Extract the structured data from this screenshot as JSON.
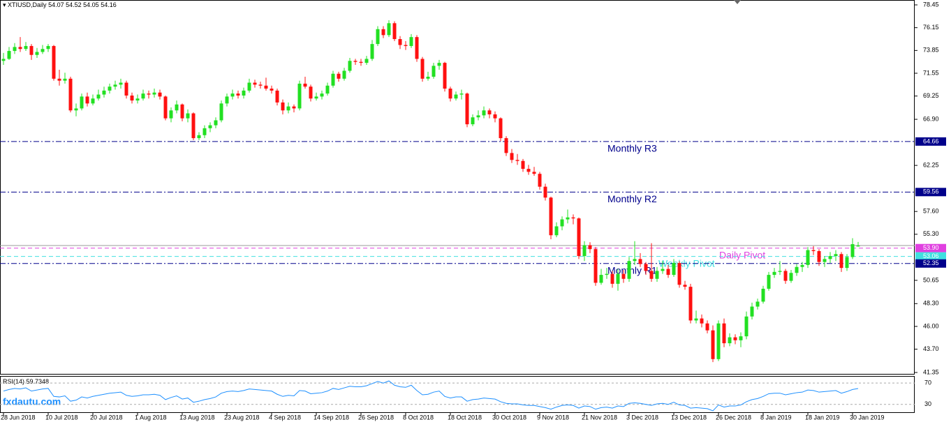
{
  "chart_data": {
    "type": "candlestick",
    "title": "XTIUSD,Daily",
    "up_color": "#22e022",
    "down_color": "#ff1010",
    "ylim": [
      41.35,
      78.45
    ],
    "yticks": [
      78.45,
      76.15,
      73.85,
      71.55,
      69.25,
      {
        "value": 66.9,
        "label": "66.90"
      },
      62.25,
      {
        "value": 57.6,
        "label": "57.60"
      },
      {
        "value": 55.3,
        "label": "55.30"
      },
      50.65,
      {
        "value": 48.3,
        "label": "48.30"
      },
      {
        "value": 46.0,
        "label": "46.00"
      },
      {
        "value": 43.7,
        "label": "43.70"
      },
      41.35
    ],
    "xticks": [
      {
        "value": 0,
        "label": "28 Jun 2018"
      },
      {
        "value": 8,
        "label": "10 Jul 2018"
      },
      {
        "value": 16,
        "label": "20 Jul 2018"
      },
      {
        "value": 24,
        "label": "1 Aug 2018"
      },
      {
        "value": 32,
        "label": "13 Aug 2018"
      },
      {
        "value": 40,
        "label": "23 Aug 2018"
      },
      {
        "value": 48,
        "label": "4 Sep 2018"
      },
      {
        "value": 56,
        "label": "14 Sep 2018"
      },
      {
        "value": 64,
        "label": "26 Sep 2018"
      },
      {
        "value": 72,
        "label": "8 Oct 2018"
      },
      {
        "value": 80,
        "label": "18 Oct 2018"
      },
      {
        "value": 88,
        "label": "30 Oct 2018"
      },
      {
        "value": 96,
        "label": "9 Nov 2018"
      },
      {
        "value": 104,
        "label": "21 Nov 2018"
      },
      {
        "value": 112,
        "label": "3 Dec 2018"
      },
      {
        "value": 120,
        "label": "13 Dec 2018"
      },
      {
        "value": 128,
        "label": "26 Dec 2018"
      },
      {
        "value": 136,
        "label": "8 Jan 2019"
      },
      {
        "value": 144,
        "label": "18 Jan 2019"
      },
      {
        "value": 152,
        "label": "30 Jan 2019"
      }
    ],
    "levels": [
      {
        "name": "Monthly R3",
        "value": 64.66,
        "color": "#00008b",
        "style": "dashdot"
      },
      {
        "name": "Monthly R2",
        "value": 59.56,
        "color": "#00008b",
        "style": "dashdot"
      },
      {
        "name": "Daily Pivot",
        "value": 53.9,
        "value_label": "53.90",
        "color": "#e040e0",
        "style": "dashed"
      },
      {
        "name": "Weekly Pivot",
        "value": 53.06,
        "color": "#40e0e0",
        "style": "dashed"
      },
      {
        "name": "Monthly R1",
        "value": 52.35,
        "color": "#00008b",
        "style": "dashdot"
      }
    ],
    "ohlc": [
      [
        72.8,
        73.6,
        72.4,
        73.0
      ],
      [
        73.0,
        74.2,
        72.9,
        73.8
      ],
      [
        73.8,
        74.6,
        73.5,
        74.2
      ],
      [
        74.2,
        75.2,
        73.7,
        74.0
      ],
      [
        74.0,
        74.7,
        73.8,
        74.3
      ],
      [
        74.3,
        74.5,
        72.9,
        73.4
      ],
      [
        73.4,
        74.1,
        73.1,
        73.7
      ],
      [
        73.7,
        74.4,
        73.5,
        74.0
      ],
      [
        74.0,
        74.5,
        73.7,
        74.3
      ],
      [
        74.3,
        74.4,
        70.8,
        71.0
      ],
      [
        71.0,
        71.9,
        70.3,
        70.8
      ],
      [
        70.8,
        71.6,
        70.5,
        71.0
      ],
      [
        71.0,
        71.2,
        67.6,
        67.8
      ],
      [
        67.8,
        68.5,
        67.2,
        68.0
      ],
      [
        68.0,
        69.5,
        67.8,
        69.2
      ],
      [
        69.2,
        69.6,
        68.2,
        68.5
      ],
      [
        68.5,
        69.4,
        68.3,
        69.0
      ],
      [
        69.0,
        69.9,
        68.8,
        69.4
      ],
      [
        69.4,
        70.2,
        69.1,
        69.8
      ],
      [
        69.8,
        70.5,
        69.5,
        70.2
      ],
      [
        70.2,
        70.8,
        69.9,
        70.4
      ],
      [
        70.4,
        71.0,
        70.0,
        70.6
      ],
      [
        70.6,
        70.8,
        69.0,
        69.3
      ],
      [
        69.3,
        69.6,
        68.5,
        68.8
      ],
      [
        68.8,
        69.4,
        68.5,
        69.0
      ],
      [
        69.0,
        69.9,
        68.8,
        69.5
      ],
      [
        69.5,
        69.8,
        69.0,
        69.4
      ],
      [
        69.4,
        70.0,
        69.1,
        69.6
      ],
      [
        69.6,
        69.9,
        68.9,
        69.2
      ],
      [
        69.2,
        69.3,
        66.8,
        67.0
      ],
      [
        67.0,
        68.1,
        66.6,
        67.8
      ],
      [
        67.8,
        68.8,
        67.5,
        68.4
      ],
      [
        68.4,
        68.5,
        66.7,
        67.0
      ],
      [
        67.0,
        67.9,
        66.6,
        67.5
      ],
      [
        67.5,
        67.6,
        64.8,
        65.0
      ],
      [
        65.0,
        65.6,
        64.8,
        65.3
      ],
      [
        65.3,
        66.3,
        65.0,
        66.0
      ],
      [
        66.0,
        66.6,
        65.6,
        66.3
      ],
      [
        66.3,
        67.1,
        66.0,
        66.8
      ],
      [
        66.8,
        68.8,
        66.6,
        68.5
      ],
      [
        68.5,
        69.5,
        68.2,
        69.2
      ],
      [
        69.2,
        69.9,
        68.9,
        69.5
      ],
      [
        69.5,
        69.8,
        69.0,
        69.3
      ],
      [
        69.3,
        70.1,
        69.0,
        69.8
      ],
      [
        69.8,
        71.0,
        69.6,
        70.6
      ],
      [
        70.6,
        70.9,
        70.1,
        70.4
      ],
      [
        70.4,
        70.7,
        70.0,
        70.3
      ],
      [
        70.3,
        71.1,
        69.8,
        70.0
      ],
      [
        70.0,
        70.3,
        69.5,
        69.8
      ],
      [
        69.8,
        70.0,
        68.3,
        68.6
      ],
      [
        68.6,
        68.9,
        67.4,
        67.8
      ],
      [
        67.8,
        68.6,
        67.5,
        68.2
      ],
      [
        68.2,
        68.4,
        67.6,
        68.0
      ],
      [
        68.0,
        70.8,
        67.8,
        70.5
      ],
      [
        70.5,
        71.2,
        70.0,
        70.2
      ],
      [
        70.2,
        70.4,
        68.7,
        69.0
      ],
      [
        69.0,
        69.6,
        68.8,
        69.2
      ],
      [
        69.2,
        69.8,
        68.9,
        69.5
      ],
      [
        69.5,
        70.6,
        69.3,
        70.3
      ],
      [
        70.3,
        71.8,
        70.1,
        71.5
      ],
      [
        71.5,
        71.7,
        70.7,
        71.0
      ],
      [
        71.0,
        72.1,
        70.8,
        71.8
      ],
      [
        71.8,
        73.1,
        71.6,
        72.8
      ],
      [
        72.8,
        73.0,
        72.4,
        72.7
      ],
      [
        72.7,
        73.0,
        72.3,
        72.6
      ],
      [
        72.6,
        73.3,
        72.4,
        73.0
      ],
      [
        73.0,
        74.9,
        72.8,
        74.5
      ],
      [
        74.5,
        76.3,
        74.3,
        76.0
      ],
      [
        76.0,
        76.3,
        75.1,
        75.4
      ],
      [
        75.4,
        76.9,
        75.2,
        76.6
      ],
      [
        76.6,
        76.8,
        74.8,
        75.0
      ],
      [
        75.0,
        75.3,
        74.0,
        74.4
      ],
      [
        74.4,
        74.8,
        73.9,
        74.3
      ],
      [
        74.3,
        75.5,
        74.1,
        75.2
      ],
      [
        75.2,
        75.4,
        72.7,
        73.0
      ],
      [
        73.0,
        73.2,
        70.7,
        71.0
      ],
      [
        71.0,
        71.7,
        70.8,
        71.2
      ],
      [
        71.2,
        72.6,
        71.0,
        72.3
      ],
      [
        72.3,
        72.9,
        71.9,
        72.6
      ],
      [
        72.6,
        72.7,
        69.7,
        70.0
      ],
      [
        70.0,
        70.2,
        68.7,
        69.0
      ],
      [
        69.0,
        69.7,
        68.8,
        69.4
      ],
      [
        69.4,
        69.9,
        68.9,
        69.5
      ],
      [
        69.5,
        69.6,
        66.1,
        66.4
      ],
      [
        66.4,
        67.4,
        66.2,
        67.1
      ],
      [
        67.1,
        67.8,
        66.8,
        67.3
      ],
      [
        67.3,
        68.2,
        67.0,
        67.8
      ],
      [
        67.8,
        68.0,
        67.0,
        67.4
      ],
      [
        67.4,
        67.7,
        66.6,
        67.0
      ],
      [
        67.0,
        67.1,
        64.7,
        65.0
      ],
      [
        65.0,
        65.2,
        63.2,
        63.5
      ],
      [
        63.5,
        63.9,
        62.5,
        62.8
      ],
      [
        62.8,
        63.4,
        62.3,
        62.7
      ],
      [
        62.7,
        62.9,
        61.6,
        61.9
      ],
      [
        61.9,
        62.3,
        61.3,
        61.6
      ],
      [
        61.6,
        62.1,
        61.2,
        61.4
      ],
      [
        61.4,
        61.6,
        59.8,
        60.1
      ],
      [
        60.1,
        60.4,
        58.7,
        59.0
      ],
      [
        59.0,
        59.1,
        54.8,
        55.2
      ],
      [
        55.2,
        56.5,
        55.0,
        56.1
      ],
      [
        56.1,
        57.1,
        55.7,
        56.8
      ],
      [
        56.8,
        57.8,
        56.4,
        57.0
      ],
      [
        57.0,
        57.3,
        56.3,
        56.9
      ],
      [
        56.9,
        57.0,
        52.8,
        53.1
      ],
      [
        53.1,
        54.6,
        52.6,
        54.2
      ],
      [
        54.2,
        54.5,
        53.4,
        53.8
      ],
      [
        53.8,
        54.0,
        50.1,
        50.4
      ],
      [
        50.4,
        51.8,
        50.2,
        51.2
      ],
      [
        51.2,
        51.9,
        50.8,
        51.3
      ],
      [
        51.3,
        51.6,
        49.9,
        50.3
      ],
      [
        50.3,
        51.8,
        49.6,
        51.3
      ],
      [
        51.3,
        51.7,
        50.4,
        50.8
      ],
      [
        50.8,
        53.0,
        50.5,
        52.6
      ],
      [
        52.6,
        54.6,
        52.2,
        52.8
      ],
      [
        52.8,
        53.4,
        52.0,
        52.3
      ],
      [
        52.3,
        52.5,
        51.2,
        51.6
      ],
      [
        51.6,
        54.4,
        50.5,
        50.8
      ],
      [
        50.8,
        52.0,
        50.5,
        51.6
      ],
      [
        51.6,
        52.6,
        51.3,
        51.8
      ],
      [
        51.8,
        52.2,
        50.9,
        51.2
      ],
      [
        51.2,
        52.8,
        51.0,
        52.4
      ],
      [
        52.4,
        52.6,
        49.9,
        50.2
      ],
      [
        50.2,
        50.6,
        49.7,
        50.0
      ],
      [
        50.0,
        50.3,
        46.3,
        46.6
      ],
      [
        46.6,
        47.6,
        46.3,
        46.8
      ],
      [
        46.8,
        47.2,
        45.9,
        46.3
      ],
      [
        46.3,
        46.6,
        45.3,
        45.6
      ],
      [
        45.6,
        46.1,
        42.4,
        42.7
      ],
      [
        42.7,
        46.6,
        42.5,
        46.3
      ],
      [
        46.3,
        46.8,
        43.9,
        44.3
      ],
      [
        44.3,
        45.3,
        44.0,
        44.9
      ],
      [
        44.9,
        45.2,
        44.2,
        44.6
      ],
      [
        44.6,
        45.4,
        43.9,
        45.0
      ],
      [
        45.0,
        47.5,
        44.7,
        47.0
      ],
      [
        47.0,
        48.4,
        46.7,
        48.0
      ],
      [
        48.0,
        48.8,
        47.7,
        48.5
      ],
      [
        48.5,
        50.1,
        48.3,
        49.8
      ],
      [
        49.8,
        51.5,
        49.6,
        51.2
      ],
      [
        51.2,
        51.9,
        50.9,
        51.5
      ],
      [
        51.5,
        52.6,
        51.2,
        51.6
      ],
      [
        51.6,
        51.8,
        50.3,
        50.6
      ],
      [
        50.6,
        51.7,
        50.4,
        51.4
      ],
      [
        51.4,
        52.3,
        51.1,
        52.0
      ],
      [
        52.0,
        52.5,
        51.5,
        52.2
      ],
      [
        52.2,
        54.0,
        51.9,
        53.7
      ],
      [
        53.7,
        54.1,
        53.2,
        53.6
      ],
      [
        53.6,
        53.8,
        52.1,
        52.5
      ],
      [
        52.5,
        53.1,
        52.0,
        52.8
      ],
      [
        52.8,
        53.5,
        52.4,
        53.1
      ],
      [
        53.1,
        53.7,
        52.6,
        53.3
      ],
      [
        53.3,
        53.5,
        51.5,
        51.9
      ],
      [
        51.9,
        53.3,
        51.6,
        53.0
      ],
      [
        53.0,
        54.9,
        52.8,
        54.3
      ],
      [
        54.07,
        54.52,
        54.05,
        54.16
      ]
    ],
    "rsi": {
      "label": "RSI(14)",
      "color": "#1e90ff",
      "ylim": [
        14,
        82
      ],
      "yticks": [
        70,
        30
      ],
      "values": [
        55,
        58,
        60,
        59,
        61,
        55,
        57,
        59,
        60,
        45,
        44,
        46,
        36,
        38,
        44,
        42,
        45,
        47,
        49,
        51,
        52,
        53,
        47,
        45,
        46,
        48,
        48,
        49,
        47,
        39,
        43,
        46,
        40,
        42,
        34,
        36,
        39,
        41,
        44,
        51,
        54,
        55,
        54,
        56,
        59,
        58,
        57,
        56,
        55,
        49,
        45,
        47,
        46,
        56,
        55,
        50,
        51,
        52,
        55,
        60,
        58,
        61,
        64,
        63,
        63,
        65,
        69,
        73,
        70,
        74,
        66,
        63,
        62,
        66,
        56,
        48,
        49,
        53,
        55,
        45,
        42,
        44,
        44,
        36,
        39,
        40,
        42,
        41,
        40,
        35,
        32,
        31,
        31,
        29,
        28,
        28,
        26,
        24,
        21,
        25,
        28,
        29,
        28,
        23,
        27,
        26,
        21,
        24,
        25,
        23,
        27,
        26,
        32,
        33,
        32,
        30,
        28,
        31,
        32,
        30,
        34,
        29,
        28,
        23,
        24,
        23,
        22,
        18,
        29,
        25,
        27,
        27,
        29,
        35,
        39,
        41,
        45,
        50,
        51,
        51,
        48,
        50,
        52,
        53,
        57,
        56,
        53,
        54,
        55,
        56,
        51,
        54,
        58,
        59.7348
      ]
    },
    "watermark": "fxdautu.com"
  }
}
